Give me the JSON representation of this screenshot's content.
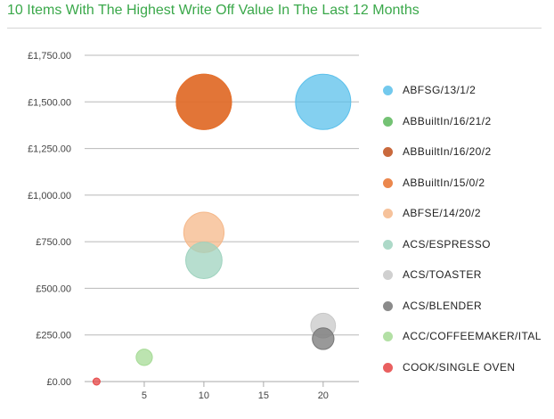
{
  "title": "10 Items With The Highest Write Off Value In The Last 12 Months",
  "chart_data": {
    "type": "bubble",
    "title": "10 Items With The Highest Write Off Value In The Last 12 Months",
    "xlabel": "",
    "ylabel": "",
    "xlim": [
      0,
      23
    ],
    "ylim": [
      0,
      1750
    ],
    "x_ticks": [
      5,
      10,
      15,
      20
    ],
    "y_ticks": [
      "£0.00",
      "£250.00",
      "£500.00",
      "£750.00",
      "£1,000.00",
      "£1,250.00",
      "£1,500.00",
      "£1,750.00"
    ],
    "y_tick_values": [
      0,
      250,
      500,
      750,
      1000,
      1250,
      1500,
      1750
    ],
    "grid": "horizontal",
    "legend_position": "right",
    "series": [
      {
        "name": "ABFSG/13/1/2",
        "x": 20,
        "y": 1500,
        "size": 1500,
        "color": "#5bc0eb"
      },
      {
        "name": "ABBuiltIn/16/21/2",
        "x": 0,
        "y": 0,
        "size": 0,
        "color": "#5cb85c"
      },
      {
        "name": "ABBuiltIn/16/20/2",
        "x": 10,
        "y": 1500,
        "size": 1500,
        "color": "#c0501c"
      },
      {
        "name": "ABBuiltIn/15/0/2",
        "x": 10,
        "y": 1500,
        "size": 1500,
        "color": "#e8732e"
      },
      {
        "name": "ABFSE/14/20/2",
        "x": 10,
        "y": 800,
        "size": 800,
        "color": "#f5b88a"
      },
      {
        "name": "ACS/ESPRESSO",
        "x": 10,
        "y": 650,
        "size": 650,
        "color": "#9fd3bf"
      },
      {
        "name": "ACS/TOASTER",
        "x": 20,
        "y": 300,
        "size": 300,
        "color": "#c8c8c8"
      },
      {
        "name": "ACS/BLENDER",
        "x": 20,
        "y": 230,
        "size": 230,
        "color": "#777777"
      },
      {
        "name": "ACC/COFFEEMAKER/ITAL",
        "x": 5,
        "y": 130,
        "size": 130,
        "color": "#a6db96"
      },
      {
        "name": "COOK/SINGLE OVEN",
        "x": 1,
        "y": 0,
        "size": 5,
        "color": "#e64545"
      }
    ]
  }
}
